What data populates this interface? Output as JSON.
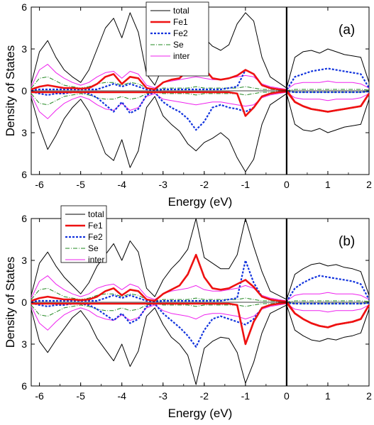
{
  "chart_data": [
    {
      "type": "line",
      "panel_label": "(a)",
      "xlabel": "Energy (eV)",
      "ylabel": "Density of States",
      "xlim": [
        -6.2,
        2
      ],
      "ylim": [
        -6,
        6
      ],
      "x_ticks": [
        -6,
        -5,
        -4,
        -3,
        -2,
        -1,
        0,
        1,
        2
      ],
      "x_tick_labels": [
        "-6",
        "-5",
        "-4",
        "-3",
        "-2",
        "-1",
        "0",
        "1",
        "2"
      ],
      "y_ticks": [
        6,
        3,
        0,
        -3,
        -6
      ],
      "y_tick_labels": [
        "6",
        "3",
        "0",
        "3",
        "6"
      ],
      "fermi_level": 0,
      "legend_position": "top-center",
      "x": [
        -6.2,
        -6.0,
        -5.8,
        -5.6,
        -5.4,
        -5.2,
        -5.0,
        -4.8,
        -4.6,
        -4.4,
        -4.2,
        -4.0,
        -3.8,
        -3.6,
        -3.4,
        -3.2,
        -3.0,
        -2.8,
        -2.6,
        -2.4,
        -2.2,
        -2.0,
        -1.8,
        -1.6,
        -1.4,
        -1.2,
        -1.0,
        -0.8,
        -0.6,
        -0.4,
        -0.2,
        0.0,
        0.2,
        0.4,
        0.6,
        0.8,
        1.0,
        1.2,
        1.4,
        1.6,
        1.8,
        2.0
      ],
      "series": [
        {
          "name": "total",
          "color": "#000000",
          "dash": "none",
          "width": 1,
          "up": [
            0.5,
            2.8,
            3.6,
            2.4,
            1.5,
            1.0,
            0.6,
            1.5,
            3.0,
            4.5,
            5.2,
            3.8,
            5.6,
            4.2,
            1.2,
            0.4,
            1.8,
            2.4,
            2.9,
            3.8,
            4.6,
            3.8,
            3.2,
            2.9,
            3.3,
            4.8,
            5.6,
            5.0,
            2.4,
            1.0,
            0.6,
            0.2,
            2.4,
            2.8,
            2.9,
            2.7,
            3.0,
            2.8,
            2.6,
            2.5,
            2.4,
            0.6
          ],
          "down": [
            -0.5,
            -2.6,
            -4.2,
            -3.2,
            -2.0,
            -1.2,
            -0.6,
            -1.5,
            -3.0,
            -4.5,
            -5.0,
            -3.5,
            -5.5,
            -4.3,
            -1.2,
            -0.4,
            -1.8,
            -2.4,
            -2.9,
            -3.8,
            -4.3,
            -3.7,
            -3.4,
            -3.0,
            -3.5,
            -4.8,
            -5.8,
            -4.9,
            -2.4,
            -1.0,
            -0.6,
            -0.2,
            -2.4,
            -2.8,
            -2.9,
            -2.7,
            -3.0,
            -2.8,
            -2.6,
            -2.5,
            -2.4,
            -0.6
          ]
        },
        {
          "name": "Fe1",
          "color": "#ee1111",
          "dash": "none",
          "width": 2.6,
          "up": [
            0.1,
            0.3,
            0.4,
            0.3,
            0.2,
            0.2,
            0.15,
            0.2,
            0.5,
            1.0,
            1.2,
            0.5,
            1.0,
            0.9,
            0.2,
            0.1,
            0.6,
            0.8,
            0.9,
            1.5,
            2.0,
            1.6,
            0.9,
            0.8,
            0.9,
            1.1,
            1.5,
            1.2,
            0.4,
            0.2,
            0.1,
            0.05,
            -0.8,
            -1.1,
            -1.3,
            -1.4,
            -1.5,
            -1.4,
            -1.3,
            -1.2,
            -1.1,
            -0.2
          ],
          "down": [
            -0.1,
            -0.1,
            -0.1,
            -0.1,
            -0.1,
            -0.1,
            -0.1,
            -0.1,
            -0.1,
            -0.1,
            -0.1,
            -0.1,
            -0.1,
            -0.1,
            -0.1,
            -0.1,
            -0.1,
            -0.1,
            -0.1,
            -0.1,
            -0.1,
            -0.1,
            -0.1,
            -0.1,
            -0.1,
            -0.2,
            -1.8,
            -1.2,
            -0.4,
            -0.2,
            -0.1,
            -0.05,
            -0.8,
            -1.1,
            -1.3,
            -1.4,
            -1.5,
            -1.4,
            -1.3,
            -1.2,
            -1.1,
            -0.2
          ]
        },
        {
          "name": "Fe2",
          "color": "#1133dd",
          "dash": "3,2",
          "width": 2.2,
          "up": [
            0.05,
            0.1,
            0.1,
            0.1,
            0.1,
            0.1,
            0.1,
            0.1,
            0.1,
            0.3,
            0.5,
            0.3,
            0.5,
            0.3,
            0.1,
            0.05,
            0.1,
            0.1,
            0.1,
            0.1,
            0.1,
            0.1,
            0.1,
            0.1,
            0.2,
            0.3,
            1.5,
            1.2,
            0.4,
            0.2,
            0.1,
            0.05,
            1.0,
            1.2,
            1.4,
            1.5,
            1.6,
            1.5,
            1.4,
            1.3,
            1.2,
            0.2
          ],
          "down": [
            -0.05,
            -0.2,
            -0.3,
            -0.2,
            -0.2,
            -0.1,
            -0.1,
            -0.2,
            -0.5,
            -1.0,
            -1.5,
            -0.8,
            -1.6,
            -1.3,
            -0.3,
            -0.1,
            -0.8,
            -1.2,
            -1.5,
            -2.0,
            -2.8,
            -2.2,
            -1.2,
            -1.0,
            -1.2,
            -1.3,
            -1.5,
            -1.2,
            -0.4,
            -0.2,
            -0.1,
            -0.05,
            -0.1,
            -0.1,
            -0.1,
            -0.1,
            -0.1,
            -0.1,
            -0.1,
            -0.1,
            -0.1,
            -0.05
          ]
        },
        {
          "name": "Se",
          "color": "#228822",
          "dash": "6,2,1,2",
          "width": 1,
          "up": [
            0.2,
            0.9,
            1.0,
            0.7,
            0.4,
            0.3,
            0.2,
            0.3,
            0.5,
            0.6,
            0.6,
            0.4,
            0.6,
            0.5,
            0.2,
            0.1,
            0.2,
            0.2,
            0.2,
            0.2,
            0.3,
            0.2,
            0.2,
            0.2,
            0.2,
            0.2,
            0.3,
            0.2,
            0.1,
            0.1,
            0.05,
            0.02,
            0.1,
            0.1,
            0.1,
            0.1,
            0.1,
            0.1,
            0.1,
            0.1,
            0.1,
            0.05
          ],
          "down": [
            -0.2,
            -0.9,
            -1.0,
            -0.7,
            -0.4,
            -0.3,
            -0.2,
            -0.3,
            -0.5,
            -0.6,
            -0.6,
            -0.4,
            -0.6,
            -0.5,
            -0.2,
            -0.1,
            -0.2,
            -0.2,
            -0.2,
            -0.2,
            -0.3,
            -0.2,
            -0.2,
            -0.2,
            -0.2,
            -0.2,
            -0.3,
            -0.2,
            -0.1,
            -0.1,
            -0.05,
            -0.02,
            -0.1,
            -0.1,
            -0.1,
            -0.1,
            -0.1,
            -0.1,
            -0.1,
            -0.1,
            -0.1,
            -0.05
          ]
        },
        {
          "name": "inter",
          "color": "#ee22ee",
          "dash": "none",
          "width": 1,
          "up": [
            0.3,
            1.5,
            1.9,
            1.3,
            0.9,
            0.6,
            0.4,
            0.6,
            1.0,
            1.3,
            1.4,
            0.9,
            1.4,
            1.2,
            0.4,
            0.2,
            0.6,
            0.7,
            0.8,
            0.9,
            1.0,
            0.9,
            0.8,
            0.8,
            0.9,
            1.0,
            1.1,
            1.0,
            0.5,
            0.3,
            0.2,
            0.1,
            0.5,
            0.6,
            0.6,
            0.6,
            0.7,
            0.6,
            0.6,
            0.6,
            0.5,
            0.2
          ],
          "down": [
            -0.3,
            -1.5,
            -2.0,
            -1.4,
            -0.9,
            -0.6,
            -0.4,
            -0.6,
            -1.0,
            -1.3,
            -1.4,
            -0.9,
            -1.4,
            -1.2,
            -0.4,
            -0.2,
            -0.6,
            -0.7,
            -0.8,
            -0.9,
            -1.0,
            -0.9,
            -0.8,
            -0.8,
            -0.9,
            -1.0,
            -1.1,
            -1.0,
            -0.5,
            -0.3,
            -0.2,
            -0.1,
            -0.5,
            -0.6,
            -0.6,
            -0.6,
            -0.7,
            -0.6,
            -0.6,
            -0.6,
            -0.5,
            -0.2
          ]
        }
      ]
    },
    {
      "type": "line",
      "panel_label": "(b)",
      "xlabel": "Energy (eV)",
      "ylabel": "Density of States",
      "xlim": [
        -6.2,
        2
      ],
      "ylim": [
        -6,
        6
      ],
      "x_ticks": [
        -6,
        -5,
        -4,
        -3,
        -2,
        -1,
        0,
        1,
        2
      ],
      "x_tick_labels": [
        "-6",
        "-5",
        "-4",
        "-3",
        "-2",
        "-1",
        "0",
        "1",
        "2"
      ],
      "y_ticks": [
        6,
        3,
        0,
        -3,
        -6
      ],
      "y_tick_labels": [
        "6",
        "3",
        "0",
        "3",
        "6"
      ],
      "fermi_level": 0,
      "legend_position": "top-left",
      "x": [
        -6.2,
        -6.0,
        -5.8,
        -5.6,
        -5.4,
        -5.2,
        -5.0,
        -4.8,
        -4.6,
        -4.4,
        -4.2,
        -4.0,
        -3.8,
        -3.6,
        -3.4,
        -3.2,
        -3.0,
        -2.8,
        -2.6,
        -2.4,
        -2.2,
        -2.0,
        -1.8,
        -1.6,
        -1.4,
        -1.2,
        -1.0,
        -0.8,
        -0.6,
        -0.4,
        -0.2,
        0.0,
        0.2,
        0.4,
        0.6,
        0.8,
        1.0,
        1.2,
        1.4,
        1.6,
        1.8,
        2.0
      ],
      "series": [
        {
          "name": "total",
          "color": "#000000",
          "dash": "none",
          "width": 1,
          "up": [
            0.5,
            2.8,
            3.6,
            2.6,
            1.8,
            1.2,
            0.6,
            1.4,
            2.6,
            3.4,
            4.2,
            3.0,
            4.4,
            3.6,
            1.0,
            0.4,
            1.6,
            2.4,
            3.0,
            3.8,
            6.0,
            3.2,
            2.8,
            2.4,
            2.4,
            3.4,
            6.0,
            4.0,
            2.2,
            0.8,
            0.5,
            0.2,
            2.0,
            2.4,
            2.7,
            2.8,
            2.6,
            2.7,
            2.5,
            2.4,
            2.2,
            0.5
          ],
          "down": [
            -0.5,
            -2.8,
            -3.6,
            -2.7,
            -1.9,
            -1.1,
            -0.6,
            -1.4,
            -2.6,
            -3.4,
            -4.2,
            -3.0,
            -4.6,
            -3.5,
            -1.0,
            -0.4,
            -1.6,
            -2.5,
            -3.0,
            -3.8,
            -5.9,
            -3.3,
            -2.8,
            -2.5,
            -2.6,
            -3.6,
            -5.8,
            -4.3,
            -2.2,
            -0.8,
            -0.5,
            -0.2,
            -2.0,
            -2.4,
            -2.7,
            -2.8,
            -2.6,
            -2.7,
            -2.5,
            -2.4,
            -2.2,
            -0.5
          ]
        },
        {
          "name": "Fe1",
          "color": "#ee1111",
          "dash": "none",
          "width": 2.6,
          "up": [
            0.1,
            0.3,
            0.4,
            0.3,
            0.2,
            0.2,
            0.15,
            0.2,
            0.4,
            0.8,
            1.0,
            0.5,
            0.9,
            0.8,
            0.2,
            0.1,
            0.6,
            0.9,
            1.2,
            2.0,
            3.4,
            1.8,
            1.0,
            0.9,
            1.0,
            1.3,
            1.6,
            1.1,
            0.4,
            0.2,
            0.1,
            0.05,
            -0.8,
            -1.2,
            -1.5,
            -1.7,
            -1.8,
            -1.6,
            -1.5,
            -1.4,
            -1.2,
            -0.2
          ],
          "down": [
            -0.1,
            -0.1,
            -0.1,
            -0.1,
            -0.1,
            -0.1,
            -0.1,
            -0.1,
            -0.1,
            -0.1,
            -0.1,
            -0.1,
            -0.1,
            -0.1,
            -0.1,
            -0.1,
            -0.1,
            -0.1,
            -0.1,
            -0.1,
            -0.1,
            -0.1,
            -0.1,
            -0.1,
            -0.1,
            -0.2,
            -3.0,
            -1.4,
            -0.4,
            -0.2,
            -0.1,
            -0.05,
            -0.8,
            -1.2,
            -1.5,
            -1.7,
            -1.8,
            -1.6,
            -1.5,
            -1.4,
            -1.2,
            -0.2
          ]
        },
        {
          "name": "Fe2",
          "color": "#1133dd",
          "dash": "3,2",
          "width": 2.2,
          "up": [
            0.05,
            0.1,
            0.1,
            0.1,
            0.1,
            0.1,
            0.1,
            0.1,
            0.1,
            0.3,
            0.5,
            0.3,
            0.5,
            0.3,
            0.1,
            0.05,
            0.1,
            0.1,
            0.1,
            0.1,
            0.1,
            0.1,
            0.1,
            0.1,
            0.2,
            0.3,
            3.0,
            1.4,
            0.4,
            0.2,
            0.1,
            0.05,
            1.0,
            1.4,
            1.7,
            1.9,
            1.8,
            1.7,
            1.6,
            1.5,
            1.3,
            0.2
          ],
          "down": [
            -0.05,
            -0.2,
            -0.3,
            -0.2,
            -0.2,
            -0.1,
            -0.1,
            -0.2,
            -0.5,
            -0.9,
            -1.3,
            -0.8,
            -1.5,
            -1.2,
            -0.3,
            -0.1,
            -0.8,
            -1.3,
            -1.8,
            -2.4,
            -3.2,
            -2.0,
            -1.2,
            -1.0,
            -1.2,
            -1.4,
            -1.6,
            -1.2,
            -0.4,
            -0.2,
            -0.1,
            -0.05,
            -0.1,
            -0.1,
            -0.1,
            -0.1,
            -0.1,
            -0.1,
            -0.1,
            -0.1,
            -0.1,
            -0.05
          ]
        },
        {
          "name": "Se",
          "color": "#228822",
          "dash": "6,2,1,2",
          "width": 1,
          "up": [
            0.2,
            0.9,
            1.0,
            0.7,
            0.4,
            0.3,
            0.2,
            0.3,
            0.5,
            0.6,
            0.6,
            0.4,
            0.6,
            0.5,
            0.2,
            0.1,
            0.2,
            0.2,
            0.2,
            0.2,
            0.3,
            0.2,
            0.2,
            0.2,
            0.2,
            0.2,
            0.3,
            0.2,
            0.1,
            0.1,
            0.05,
            0.02,
            0.1,
            0.1,
            0.1,
            0.1,
            0.1,
            0.1,
            0.1,
            0.1,
            0.1,
            0.05
          ],
          "down": [
            -0.2,
            -0.9,
            -1.0,
            -0.7,
            -0.4,
            -0.3,
            -0.2,
            -0.3,
            -0.5,
            -0.6,
            -0.6,
            -0.4,
            -0.6,
            -0.5,
            -0.2,
            -0.1,
            -0.2,
            -0.2,
            -0.2,
            -0.2,
            -0.3,
            -0.2,
            -0.2,
            -0.2,
            -0.2,
            -0.2,
            -0.3,
            -0.2,
            -0.1,
            -0.1,
            -0.05,
            -0.02,
            -0.1,
            -0.1,
            -0.1,
            -0.1,
            -0.1,
            -0.1,
            -0.1,
            -0.1,
            -0.1,
            -0.05
          ]
        },
        {
          "name": "inter",
          "color": "#ee22ee",
          "dash": "none",
          "width": 1,
          "up": [
            0.3,
            1.5,
            1.9,
            1.3,
            0.9,
            0.6,
            0.4,
            0.6,
            1.0,
            1.2,
            1.3,
            0.9,
            1.3,
            1.1,
            0.4,
            0.2,
            0.6,
            0.8,
            0.9,
            1.0,
            1.2,
            0.9,
            0.8,
            0.8,
            0.9,
            1.0,
            1.2,
            1.0,
            0.5,
            0.3,
            0.2,
            0.1,
            0.5,
            0.6,
            0.6,
            0.6,
            0.7,
            0.6,
            0.6,
            0.6,
            0.5,
            0.2
          ],
          "down": [
            -0.3,
            -1.5,
            -2.0,
            -1.4,
            -0.9,
            -0.6,
            -0.4,
            -0.6,
            -1.0,
            -1.2,
            -1.3,
            -0.9,
            -1.3,
            -1.1,
            -0.4,
            -0.2,
            -0.6,
            -0.8,
            -0.9,
            -1.0,
            -1.2,
            -0.9,
            -0.8,
            -0.8,
            -0.9,
            -1.0,
            -1.2,
            -1.0,
            -0.5,
            -0.3,
            -0.2,
            -0.1,
            -0.5,
            -0.6,
            -0.6,
            -0.6,
            -0.7,
            -0.6,
            -0.6,
            -0.6,
            -0.5,
            -0.2
          ]
        }
      ]
    }
  ]
}
